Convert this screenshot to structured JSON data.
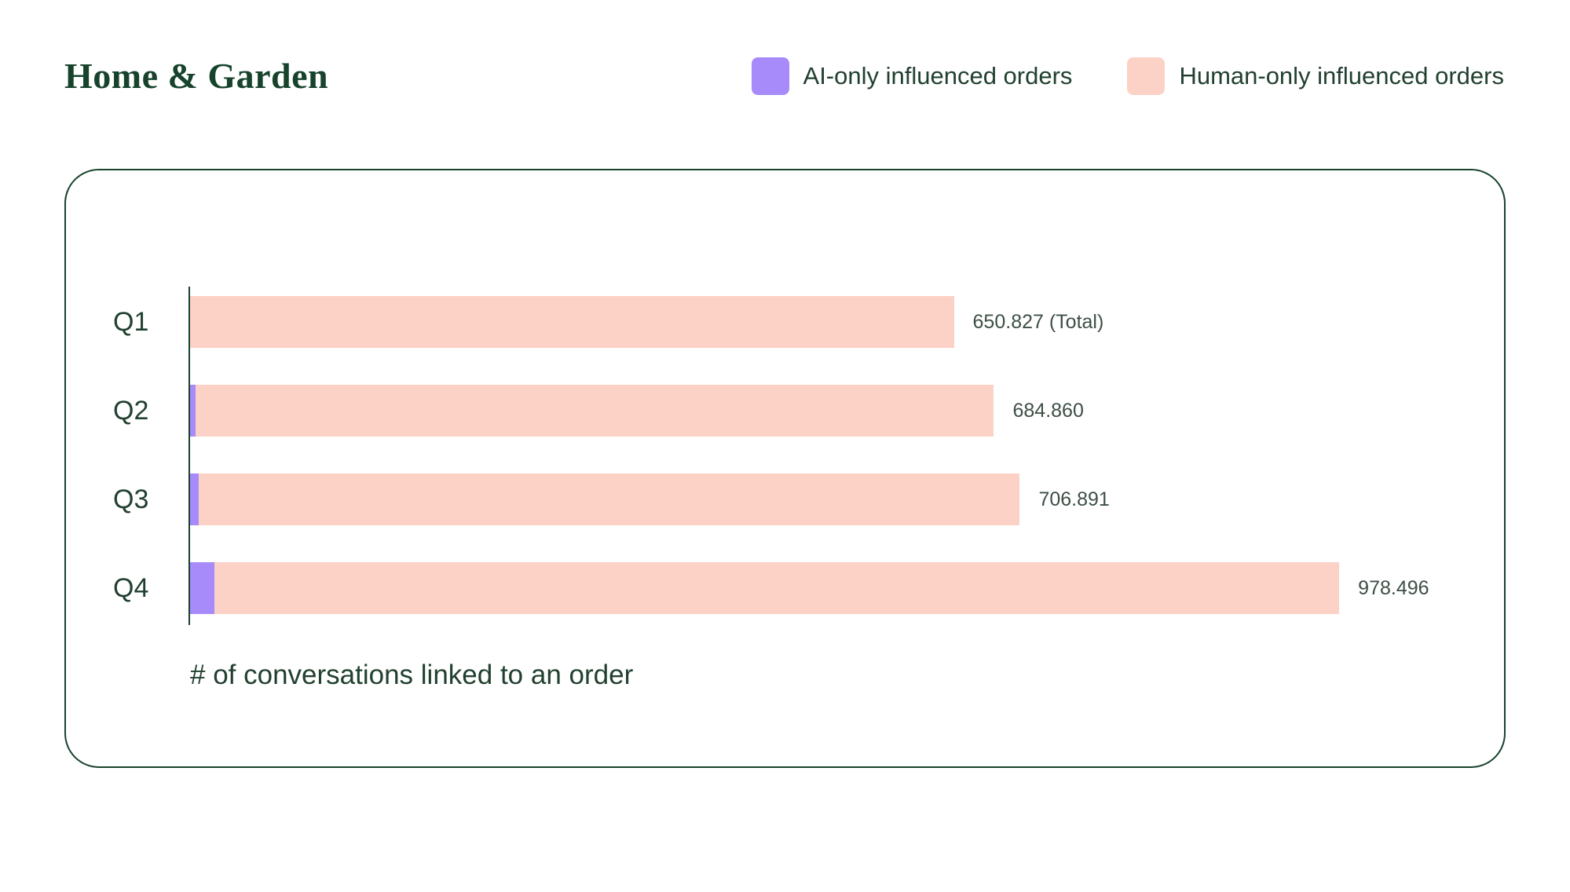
{
  "page": {
    "title": "Home & Garden"
  },
  "colors": {
    "green": "#17432c",
    "text_green": "#21402f",
    "value_text": "#3d4f45",
    "ai_purple": "#a78bfa",
    "human_pink": "#fbd2c5"
  },
  "legend": [
    {
      "label": "AI-only influenced orders",
      "color": "#a78bfa"
    },
    {
      "label": "Human-only influenced orders",
      "color": "#fbd2c5"
    }
  ],
  "chart_data": {
    "type": "bar",
    "orientation": "horizontal",
    "title": "Home & Garden",
    "categories": [
      "Q1",
      "Q2",
      "Q3",
      "Q4"
    ],
    "series": [
      {
        "name": "AI-only influenced orders",
        "color": "#a78bfa",
        "values": [
          0,
          5800,
          8400,
          22100
        ]
      },
      {
        "name": "Human-only influenced orders",
        "color": "#fbd2c5",
        "values": [
          650827,
          679060,
          698491,
          956396
        ]
      }
    ],
    "totals": [
      650827,
      684860,
      706891,
      978496
    ],
    "total_labels": [
      "650.827 (Total)",
      "684.860",
      "706.891",
      "978.496"
    ],
    "xlabel": "# of conversations linked to an order",
    "xlim": [
      0,
      978496
    ],
    "legend_position": "top-right",
    "grid": false
  }
}
